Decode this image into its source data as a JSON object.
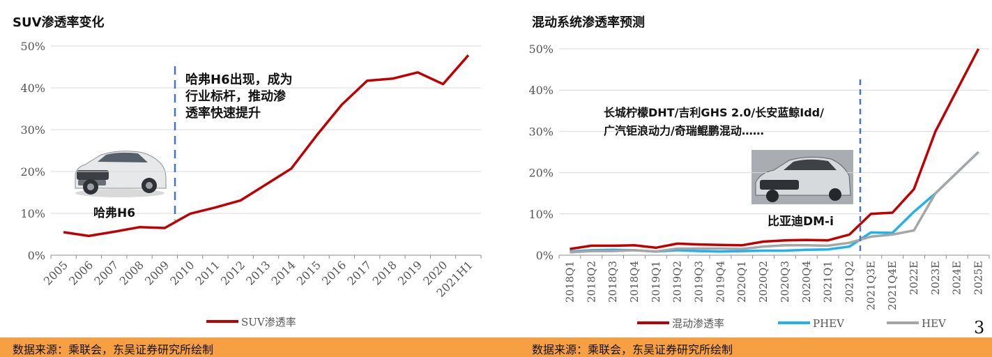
{
  "left_chart_title": "SUV渗透率变化",
  "right_chart_title": "混动系统渗透率预测",
  "left_annotation_lines": [
    "哈弗H6出现，成为",
    "行业标杆，推动渗",
    "透率快速提升"
  ],
  "left_car_label": "哈弗H6",
  "right_annotation_lines": [
    "长城柠檬DHT/吉利GHS 2.0/长安蓝鲸Idd/",
    "广汽钜浪动力/奇瑞鲲鹏混动……"
  ],
  "right_car_label": "比亚迪DM-i",
  "source_left": "数据来源：乘联会，东吴证券研究所绘制",
  "source_right": "数据来源：乘联会，东吴证券研究所绘制",
  "page_number": "3",
  "colors": {
    "red": "#c00000",
    "blue": "#1fb2ef",
    "gray": "#a6a6a6",
    "footer": "#f7a043"
  },
  "chart_data": [
    {
      "type": "line",
      "title": "SUV渗透率变化",
      "categories": [
        "2005",
        "2006",
        "2007",
        "2008",
        "2009",
        "2010",
        "2011",
        "2012",
        "2013",
        "2014",
        "2015",
        "2016",
        "2017",
        "2018",
        "2019",
        "2020",
        "2021H1"
      ],
      "series": [
        {
          "name": "SUV渗透率",
          "color": "#c00000",
          "values": [
            5.5,
            4.6,
            5.6,
            6.7,
            6.5,
            9.9,
            11.4,
            13.1,
            16.9,
            20.7,
            28.6,
            36.0,
            41.7,
            42.2,
            43.7,
            40.9,
            47.8
          ]
        }
      ],
      "yticks": [
        "0%",
        "10%",
        "20%",
        "30%",
        "40%",
        "50%"
      ],
      "ylim": [
        0,
        50
      ],
      "grid": true
    },
    {
      "type": "line",
      "title": "混动系统渗透率预测",
      "categories": [
        "2018Q1",
        "2018Q2",
        "2018Q3",
        "2018Q4",
        "2019Q1",
        "2019Q2",
        "2019Q3",
        "2019Q4",
        "2020Q1",
        "2020Q2",
        "2020Q3",
        "2020Q4",
        "2021Q1",
        "2021Q2",
        "2021Q3E",
        "2021Q4E",
        "2022E",
        "2023E",
        "2024E",
        "2025E"
      ],
      "series": [
        {
          "name": "混动渗透率",
          "color": "#c00000",
          "values": [
            1.5,
            2.3,
            2.3,
            2.4,
            1.8,
            2.8,
            2.6,
            2.5,
            2.4,
            3.3,
            3.6,
            3.7,
            3.6,
            5.0,
            10.0,
            10.3,
            16.0,
            30.0,
            40.0,
            50.0
          ]
        },
        {
          "name": "PHEV",
          "color": "#1fb2ef",
          "values": [
            0.9,
            1.2,
            1.3,
            1.2,
            0.9,
            1.2,
            1.0,
            0.9,
            1.0,
            1.1,
            1.1,
            1.3,
            1.4,
            2.1,
            5.5,
            5.4,
            10.5,
            15.0,
            20.0,
            25.0
          ]
        },
        {
          "name": "HEV",
          "color": "#a6a6a6",
          "values": [
            0.7,
            1.0,
            1.0,
            1.2,
            0.9,
            1.6,
            1.6,
            1.6,
            1.5,
            2.1,
            2.4,
            2.4,
            2.3,
            3.0,
            4.5,
            5.0,
            6.0,
            15.0,
            20.0,
            25.0
          ]
        }
      ],
      "yticks": [
        "0%",
        "10%",
        "20%",
        "30%",
        "40%",
        "50%"
      ],
      "ylim": [
        0,
        50
      ],
      "grid": true
    }
  ]
}
